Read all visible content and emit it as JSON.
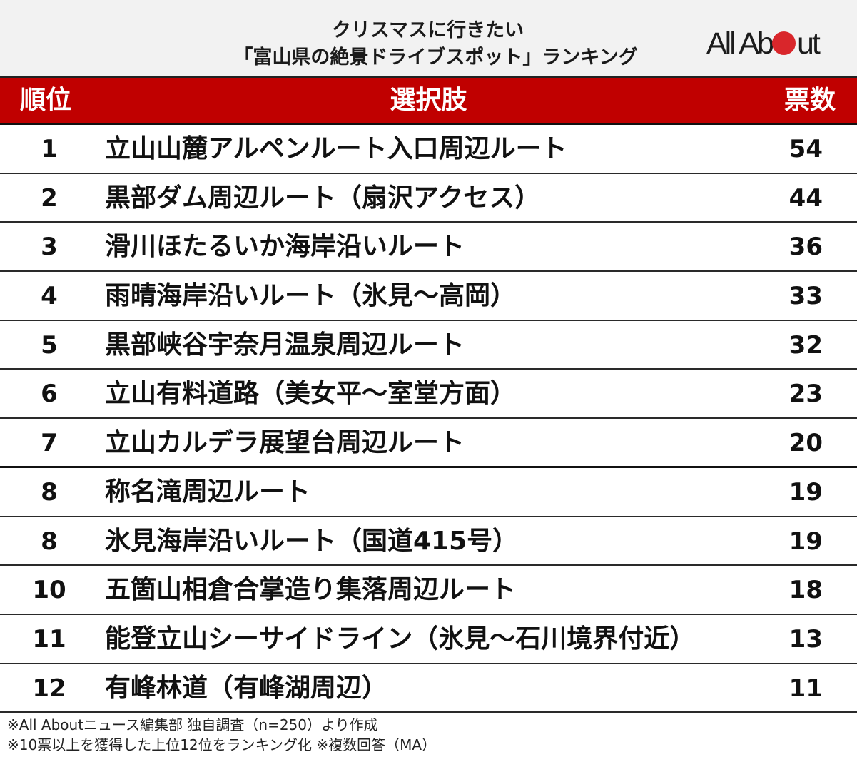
{
  "title": {
    "line1": "クリスマスに行きたい",
    "line2": "「富山県の絶景ドライブスポット」ランキング"
  },
  "logo": {
    "part1": "All Ab",
    "part2": "ut",
    "dot_color": "#d9262b"
  },
  "colors": {
    "header_bg": "#c00000",
    "title_bg": "#f2f2f2",
    "header_text": "#ffffff"
  },
  "table": {
    "headers": {
      "rank": "順位",
      "choice": "選択肢",
      "votes": "票数"
    },
    "rows": [
      {
        "rank": "1",
        "choice": "立山山麓アルペンルート入口周辺ルート",
        "votes": "54"
      },
      {
        "rank": "2",
        "choice": "黒部ダム周辺ルート（扇沢アクセス）",
        "votes": "44"
      },
      {
        "rank": "3",
        "choice": "滑川ほたるいか海岸沿いルート",
        "votes": "36"
      },
      {
        "rank": "4",
        "choice": "雨晴海岸沿いルート（氷見〜高岡）",
        "votes": "33"
      },
      {
        "rank": "5",
        "choice": "黒部峡谷宇奈月温泉周辺ルート",
        "votes": "32"
      },
      {
        "rank": "6",
        "choice": "立山有料道路（美女平〜室堂方面）",
        "votes": "23"
      },
      {
        "rank": "7",
        "choice": "立山カルデラ展望台周辺ルート",
        "votes": "20"
      },
      {
        "rank": "8",
        "choice": "称名滝周辺ルート",
        "votes": "19"
      },
      {
        "rank": "8",
        "choice": "氷見海岸沿いルート（国道415号）",
        "votes": "19"
      },
      {
        "rank": "10",
        "choice": "五箇山相倉合掌造り集落周辺ルート",
        "votes": "18"
      },
      {
        "rank": "11",
        "choice": "能登立山シーサイドライン（氷見〜石川境界付近）",
        "votes": "13"
      },
      {
        "rank": "12",
        "choice": "有峰林道（有峰湖周辺）",
        "votes": "11"
      }
    ]
  },
  "footnotes": {
    "line1": "※All Aboutニュース編集部 独自調査（n=250）より作成",
    "line2": "※10票以上を獲得した上位12位をランキング化 ※複数回答（MA）"
  },
  "chart_data": {
    "type": "table",
    "title": "クリスマスに行きたい「富山県の絶景ドライブスポット」ランキング",
    "columns": [
      "順位",
      "選択肢",
      "票数"
    ],
    "categories": [
      "立山山麓アルペンルート入口周辺ルート",
      "黒部ダム周辺ルート（扇沢アクセス）",
      "滑川ほたるいか海岸沿いルート",
      "雨晴海岸沿いルート（氷見〜高岡）",
      "黒部峡谷宇奈月温泉周辺ルート",
      "立山有料道路（美女平〜室堂方面）",
      "立山カルデラ展望台周辺ルート",
      "称名滝周辺ルート",
      "氷見海岸沿いルート（国道415号）",
      "五箇山相倉合掌造り集落周辺ルート",
      "能登立山シーサイドライン（氷見〜石川境界付近）",
      "有峰林道（有峰湖周辺）"
    ],
    "ranks": [
      1,
      2,
      3,
      4,
      5,
      6,
      7,
      8,
      8,
      10,
      11,
      12
    ],
    "values": [
      54,
      44,
      36,
      33,
      32,
      23,
      20,
      19,
      19,
      18,
      13,
      11
    ],
    "notes": [
      "※All Aboutニュース編集部 独自調査（n=250）より作成",
      "※10票以上を獲得した上位12位をランキング化 ※複数回答（MA）"
    ]
  }
}
